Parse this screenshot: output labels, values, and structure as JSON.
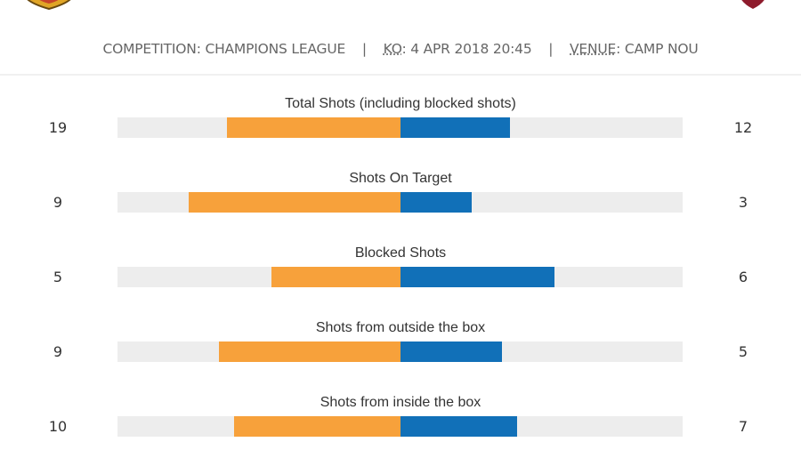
{
  "header": {
    "competition_label": "COMPETITION:",
    "competition": "CHAMPIONS LEAGUE",
    "ko_label": "KO",
    "ko": ": 4 APR 2018 20:45",
    "venue_label": "VENUE",
    "venue": ": CAMP NOU",
    "separator": "|"
  },
  "colors": {
    "home": "#f7a13b",
    "away": "#1170b8",
    "track": "#ededed"
  },
  "stats": [
    {
      "label": "Total Shots (including blocked shots)",
      "home": "19",
      "away": "12"
    },
    {
      "label": "Shots On Target",
      "home": "9",
      "away": "3"
    },
    {
      "label": "Blocked Shots",
      "home": "5",
      "away": "6"
    },
    {
      "label": "Shots from outside the box",
      "home": "9",
      "away": "5"
    },
    {
      "label": "Shots from inside the box",
      "home": "10",
      "away": "7"
    }
  ]
}
